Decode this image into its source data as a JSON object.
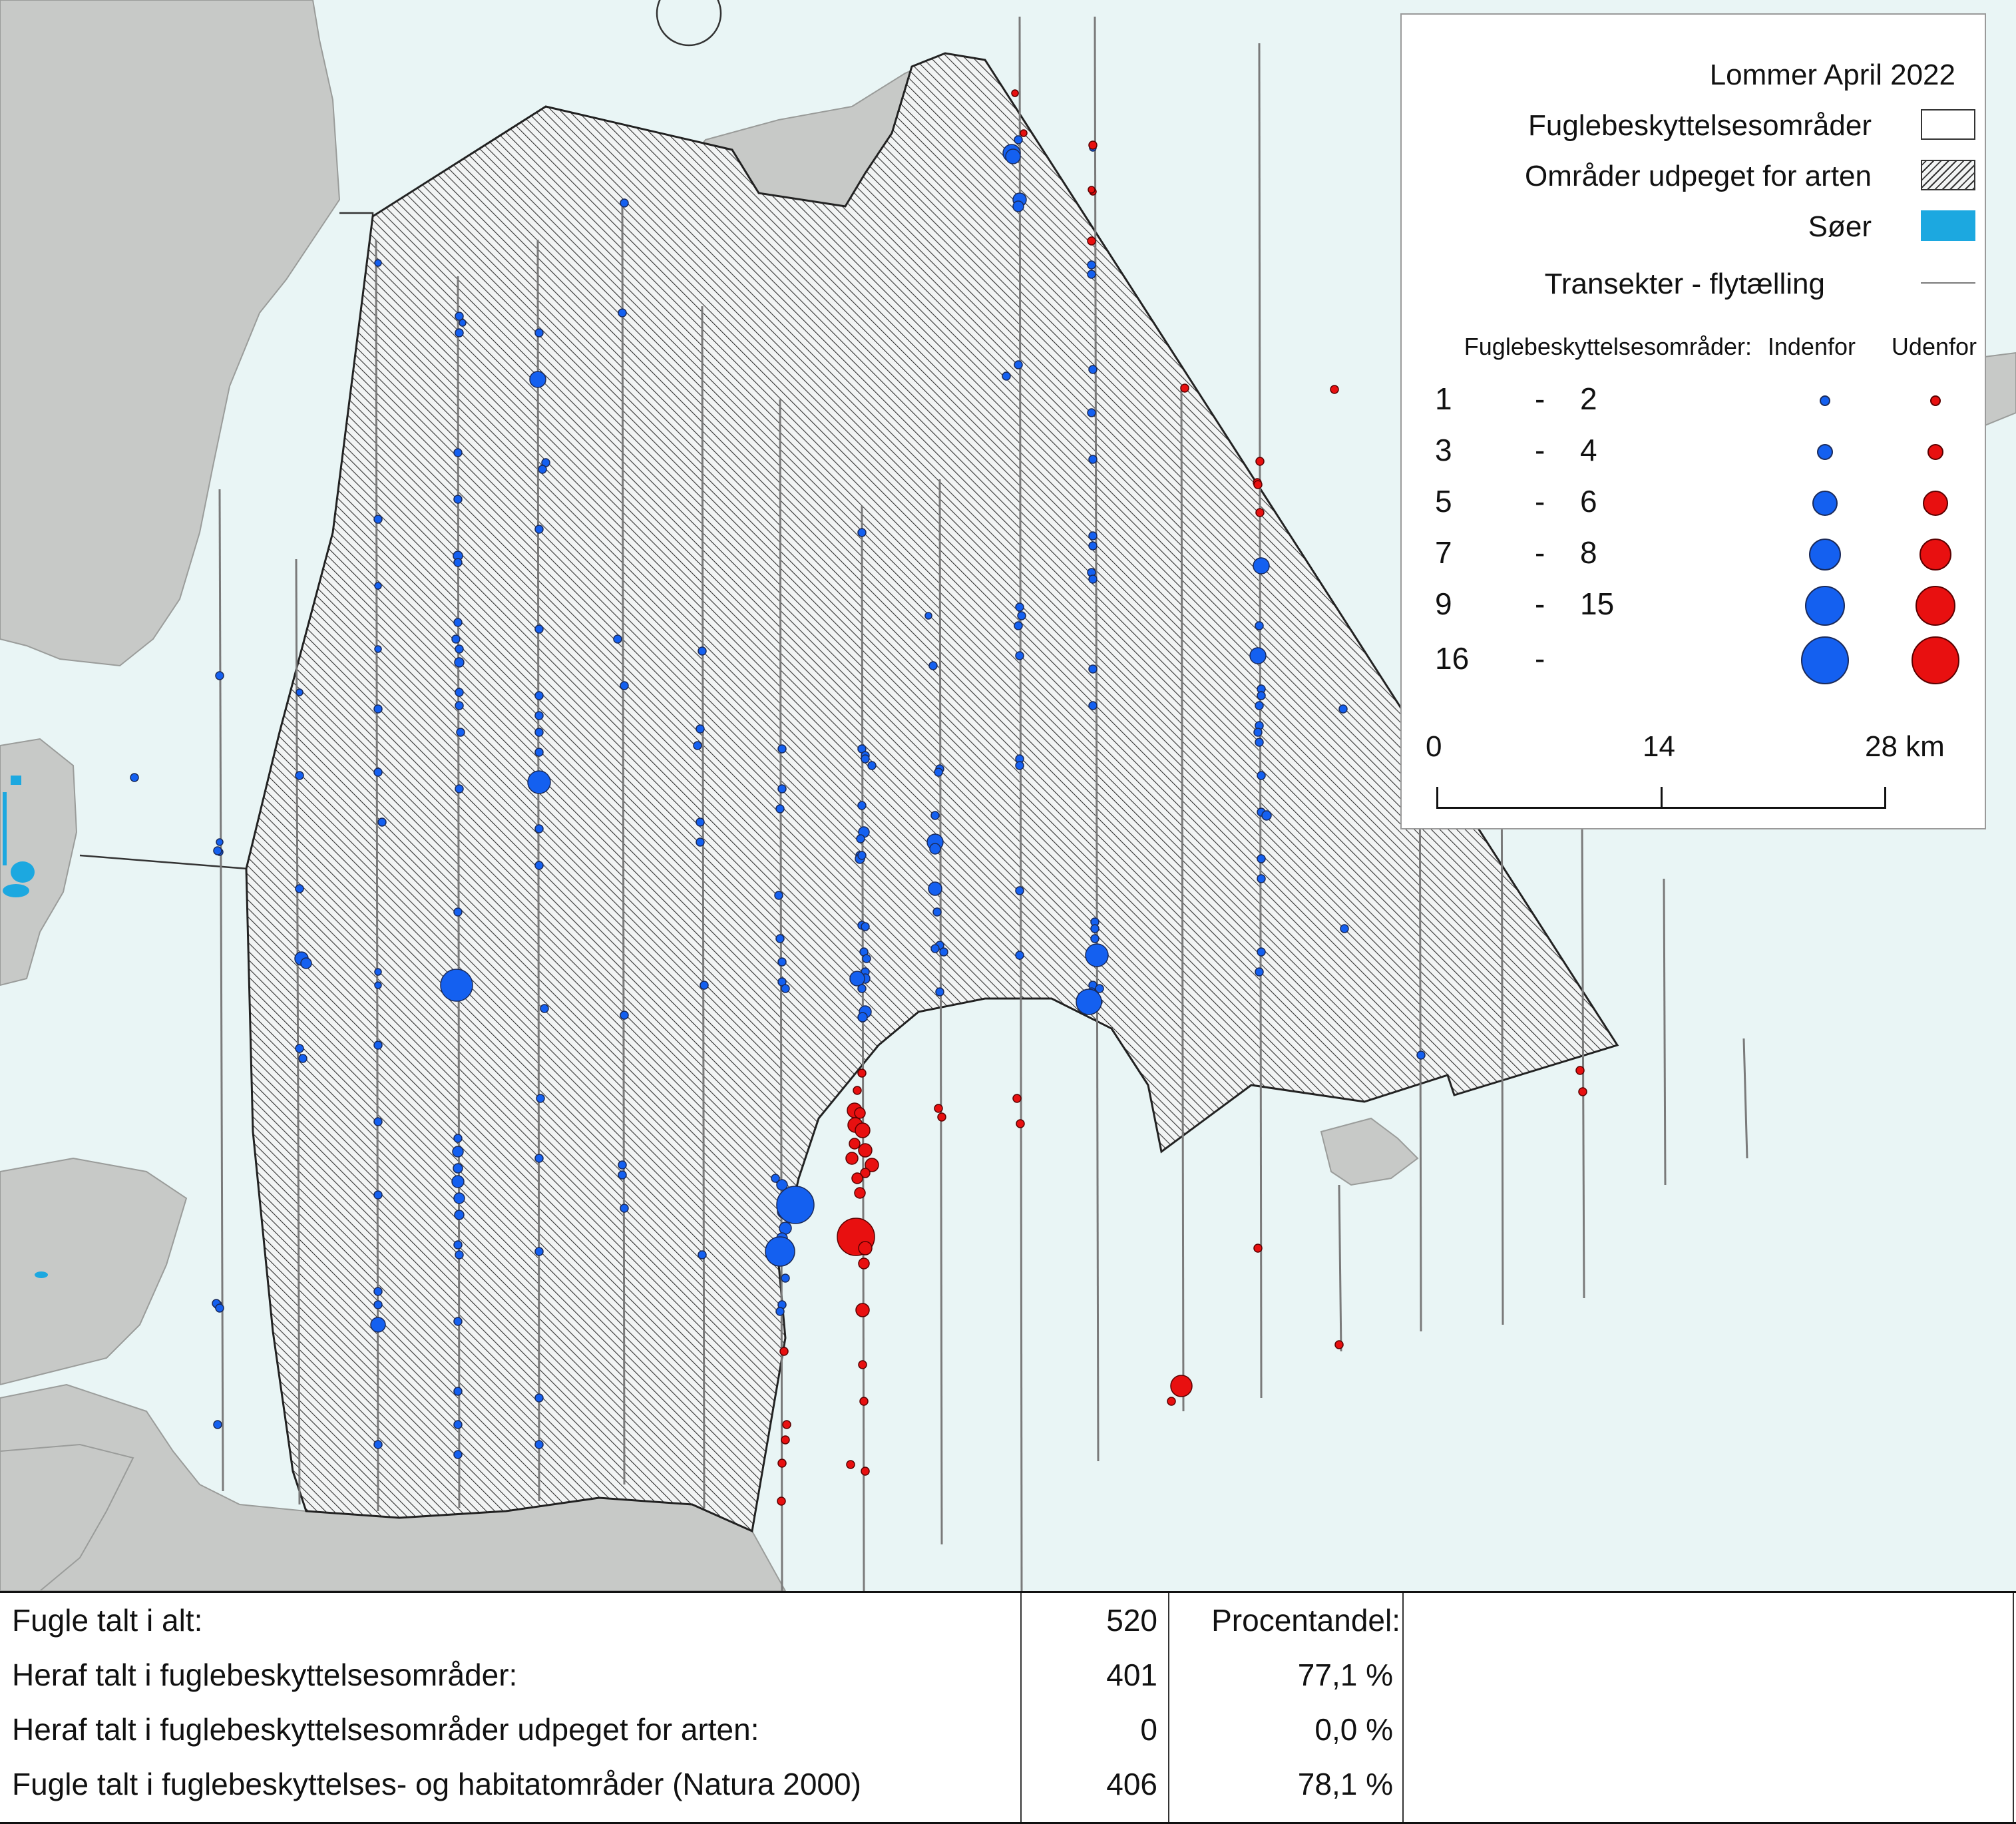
{
  "map": {
    "colors": {
      "water": "#e9f5f5",
      "land": "#c7c9c7",
      "hatch_area_stroke": "#222222",
      "transect": "#7a7a7a",
      "inside": "#1460f0",
      "outside": "#e81010",
      "lakes": "#1ca8e0"
    }
  },
  "legend": {
    "title": "Lommer April 2022",
    "bird_areas": "Fuglebeskyttelsesområder",
    "designated_areas": "Områder udpeget for arten",
    "lakes": "Søer",
    "transects": "Transekter - flytælling",
    "size_header": "Fuglebeskyttelsesområder:",
    "inside_label": "Indenfor",
    "outside_label": "Udenfor",
    "classes": [
      {
        "from": "1",
        "dash": "-",
        "to": "2"
      },
      {
        "from": "3",
        "dash": "-",
        "to": "4"
      },
      {
        "from": "5",
        "dash": "-",
        "to": "6"
      },
      {
        "from": "7",
        "dash": "-",
        "to": "8"
      },
      {
        "from": "9",
        "dash": "-",
        "to": "15"
      },
      {
        "from": "16",
        "dash": "-",
        "to": ""
      }
    ],
    "scale": {
      "ticks": [
        "0",
        "14",
        "28 km"
      ]
    }
  },
  "stats": {
    "rows": [
      {
        "label": "Fugle talt i alt:",
        "count": "520",
        "pct": "Procentandel:"
      },
      {
        "label": "Heraf talt i fuglebeskyttelsesområder:",
        "count": "401",
        "pct": "77,1 %"
      },
      {
        "label": "Heraf talt i fuglebeskyttelsesområder udpeget for arten:",
        "count": "0",
        "pct": "0,0 %"
      },
      {
        "label": "Fugle talt i fuglebeskyttelses- og habitatområder (Natura 2000)",
        "count": "406",
        "pct": "78,1 %"
      }
    ]
  }
}
